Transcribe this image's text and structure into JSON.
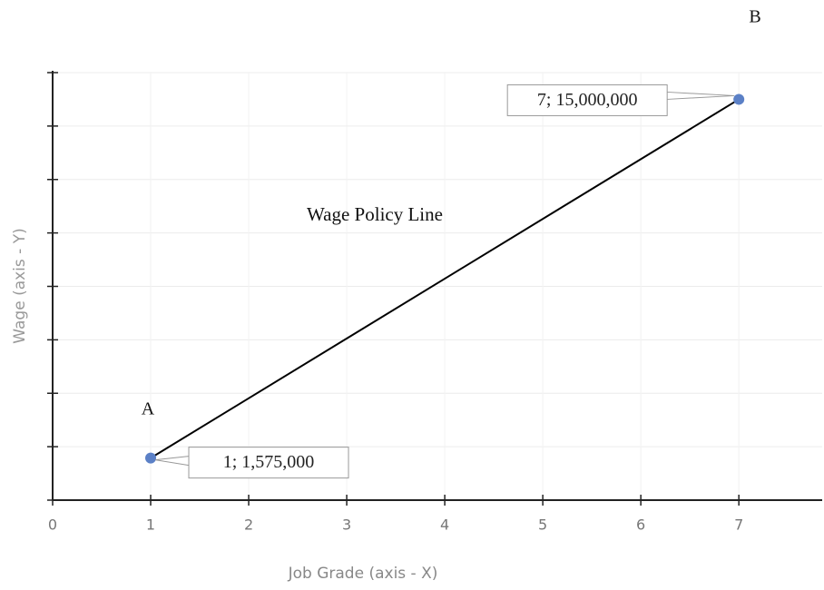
{
  "chart_data": {
    "type": "line",
    "x_label": "Job Grade (axis  - X)",
    "y_label": "Wage (axis - Y)",
    "annotations": [
      "A",
      "B",
      "Wage Policy Line"
    ],
    "x": [
      1,
      7
    ],
    "series": [
      {
        "name": "Wage Policy Line",
        "color": "#000000",
        "marker_color": "#5b80c6",
        "values": [
          1575000,
          15000000
        ],
        "value_labels": [
          "1; 1,575,000",
          "7; 15,000,000"
        ]
      }
    ],
    "xlim": [
      0,
      7.85
    ],
    "xticks": [
      0,
      1,
      2,
      3,
      4,
      5,
      6,
      7
    ],
    "ylim": [
      0,
      16000000
    ],
    "yticks": [
      0,
      2000000,
      4000000,
      6000000,
      8000000,
      10000000,
      12000000,
      14000000,
      16000000
    ],
    "grid": true
  }
}
